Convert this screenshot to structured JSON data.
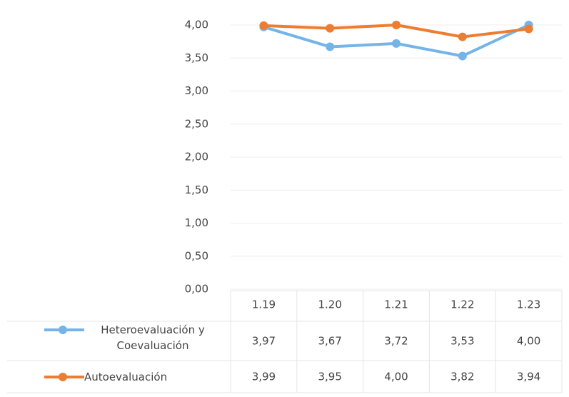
{
  "chart_data": {
    "type": "line",
    "categories": [
      "1.19",
      "1.20",
      "1.21",
      "1.22",
      "1.23"
    ],
    "series": [
      {
        "name": "Heteroevaluación y Coevaluación",
        "color": "#74b4e8",
        "values": [
          3.97,
          3.67,
          3.72,
          3.53,
          4.0
        ],
        "value_labels": [
          "3,97",
          "3,67",
          "3,72",
          "3,53",
          "4,00"
        ]
      },
      {
        "name": "Autoevaluación",
        "color": "#ed7d31",
        "values": [
          3.99,
          3.95,
          4.0,
          3.82,
          3.94
        ],
        "value_labels": [
          "3,99",
          "3,95",
          "4,00",
          "3,82",
          "3,94"
        ]
      }
    ],
    "ylim": [
      0,
      4
    ],
    "yticks": [
      {
        "value": 0,
        "label": "0,00"
      },
      {
        "value": 0.5,
        "label": "0,50"
      },
      {
        "value": 1,
        "label": "1,00"
      },
      {
        "value": 1.5,
        "label": "1,50"
      },
      {
        "value": 2,
        "label": "2,00"
      },
      {
        "value": 2.5,
        "label": "2,50"
      },
      {
        "value": 3,
        "label": "3,00"
      },
      {
        "value": 3.5,
        "label": "3,50"
      },
      {
        "value": 4,
        "label": "4,00"
      }
    ],
    "grid": true,
    "data_table": true
  }
}
